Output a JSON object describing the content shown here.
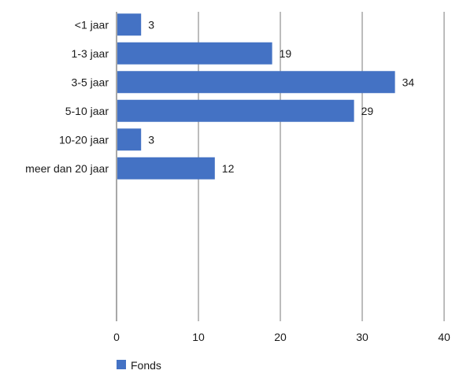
{
  "chart_data": {
    "type": "bar",
    "orientation": "horizontal",
    "categories": [
      "<1 jaar",
      "1-3 jaar",
      "3-5 jaar",
      "5-10 jaar",
      "10-20 jaar",
      "meer dan 20 jaar"
    ],
    "series": [
      {
        "name": "Fonds",
        "values": [
          3,
          19,
          34,
          29,
          3,
          12
        ],
        "color": "#4472c4"
      }
    ],
    "xlim": [
      0,
      40
    ],
    "xticks": [
      0,
      10,
      20,
      30,
      40
    ],
    "grid": "vertical",
    "legend": "bottom-left",
    "title": "",
    "xlabel": "",
    "ylabel": ""
  }
}
